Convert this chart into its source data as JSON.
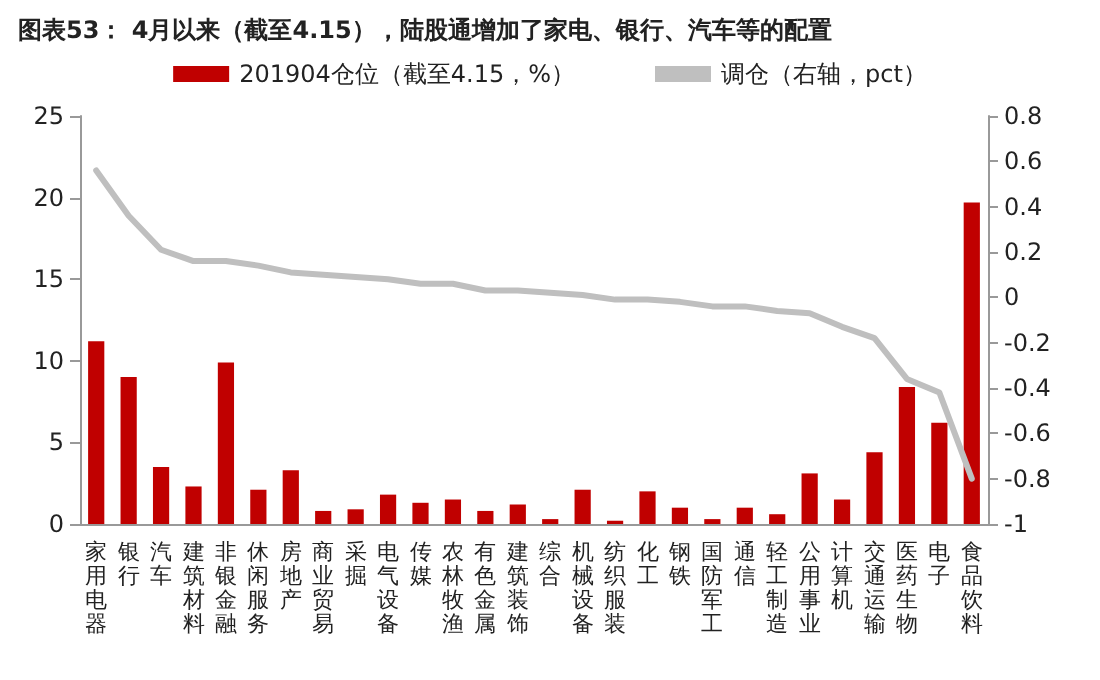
{
  "chart_data": {
    "type": "bar",
    "title": "图表53： 4月以来（截至4.15），陆股通增加了家电、银行、汽车等的配置",
    "categories": [
      "家用电器",
      "银行",
      "汽车",
      "建筑材料",
      "非银金融",
      "休闲服务",
      "房地产",
      "商业贸易",
      "采掘",
      "电气设备",
      "传媒",
      "农林牧渔",
      "有色金属",
      "建筑装饰",
      "综合",
      "机械设备",
      "纺织服装",
      "化工",
      "钢铁",
      "国防军工",
      "通信",
      "轻工制造",
      "公用事业",
      "计算机",
      "交通运输",
      "医药生物",
      "电子",
      "食品饮料"
    ],
    "series": [
      {
        "name": "201904仓位（截至4.15，%）",
        "color": "#c00000",
        "values": [
          11.2,
          9.0,
          3.5,
          2.3,
          9.9,
          2.1,
          3.3,
          0.8,
          0.9,
          1.8,
          1.3,
          1.5,
          0.8,
          1.2,
          0.3,
          2.1,
          0.2,
          2.0,
          1.0,
          0.3,
          1.0,
          0.6,
          3.1,
          1.5,
          4.4,
          8.4,
          6.2,
          19.7
        ]
      },
      {
        "name": "调仓（右轴，pct）",
        "type": "line",
        "axis": "y2",
        "color": "#bfbfbf",
        "values": [
          0.56,
          0.36,
          0.21,
          0.16,
          0.16,
          0.14,
          0.11,
          0.1,
          0.09,
          0.08,
          0.06,
          0.06,
          0.03,
          0.03,
          0.02,
          0.01,
          -0.01,
          -0.01,
          -0.02,
          -0.04,
          -0.04,
          -0.06,
          -0.07,
          -0.13,
          -0.18,
          -0.36,
          -0.42,
          -0.8
        ]
      }
    ],
    "ylim": [
      0,
      25
    ],
    "yticks": [
      0,
      5,
      10,
      15,
      20,
      25
    ],
    "y2lim": [
      -1,
      0.8
    ],
    "y2ticks": [
      -1,
      -0.8,
      -0.6,
      -0.4,
      -0.2,
      0,
      0.2,
      0.4,
      0.6,
      0.8
    ],
    "grid": false,
    "legend": "top",
    "marker": "none",
    "line_style": "solid"
  }
}
